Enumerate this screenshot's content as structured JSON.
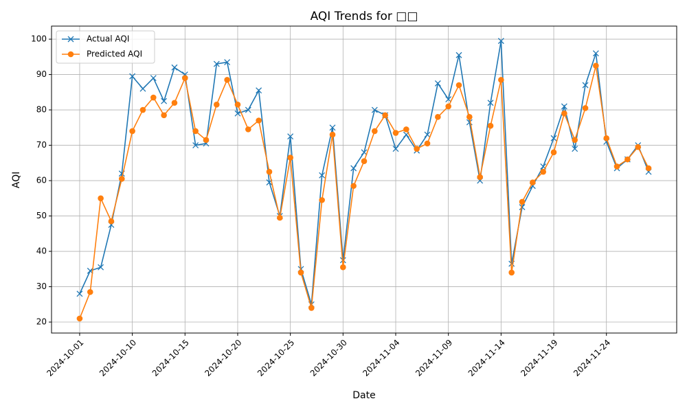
{
  "chart_data": {
    "type": "line",
    "title": "AQI Trends for □□",
    "x_label": "Date",
    "y_label": "AQI",
    "categories": [
      "2024-10-01",
      null,
      null,
      null,
      null,
      "2024-10-10",
      null,
      null,
      null,
      null,
      "2024-10-15",
      null,
      null,
      null,
      null,
      "2024-10-20",
      null,
      null,
      null,
      null,
      "2024-10-25",
      null,
      null,
      null,
      null,
      "2024-10-30",
      null,
      null,
      null,
      null,
      "2024-11-04",
      null,
      null,
      null,
      null,
      "2024-11-09",
      null,
      null,
      null,
      null,
      "2024-11-14",
      null,
      null,
      null,
      null,
      "2024-11-19",
      null,
      null,
      null,
      null,
      "2024-11-24",
      null,
      null,
      null,
      null
    ],
    "series": [
      {
        "name": "Actual AQI",
        "color": "#1f77b4",
        "marker": "x",
        "values": [
          28,
          34.5,
          35.5,
          47.5,
          62,
          89.5,
          86,
          89,
          82.5,
          92,
          90,
          70,
          70.5,
          93,
          93.5,
          79,
          80,
          85.5,
          59.5,
          50,
          72.5,
          35,
          25,
          61.5,
          75,
          37.5,
          63.5,
          68,
          80,
          78.5,
          69,
          73,
          68.5,
          73,
          87.5,
          83,
          95.5,
          76.5,
          60,
          82,
          99.5,
          36.5,
          52.5,
          58.5,
          64,
          72,
          81,
          69,
          87,
          96,
          71,
          63.5,
          66,
          70,
          62.5
        ]
      },
      {
        "name": "Predicted AQI",
        "color": "#ff7f0e",
        "marker": "o",
        "values": [
          21,
          28.5,
          55,
          48.5,
          60.5,
          74,
          80,
          83.5,
          78.5,
          82,
          89,
          74,
          71.5,
          81.5,
          88.5,
          81.5,
          74.5,
          77,
          62.5,
          49.5,
          66.5,
          34,
          24,
          54.5,
          73,
          35.5,
          58.5,
          65.5,
          74,
          78.5,
          73.5,
          74.5,
          69,
          70.5,
          78,
          81,
          87,
          78,
          61,
          75.5,
          88.5,
          34,
          54,
          59.5,
          62.5,
          68,
          79,
          71.5,
          80.5,
          92.5,
          72,
          64,
          66,
          69.5,
          63.5
        ]
      }
    ],
    "ylim": [
      16.9,
      103.7
    ],
    "yticks": [
      20,
      30,
      40,
      50,
      60,
      70,
      80,
      90,
      100
    ],
    "grid": true,
    "legend": "upper left"
  }
}
